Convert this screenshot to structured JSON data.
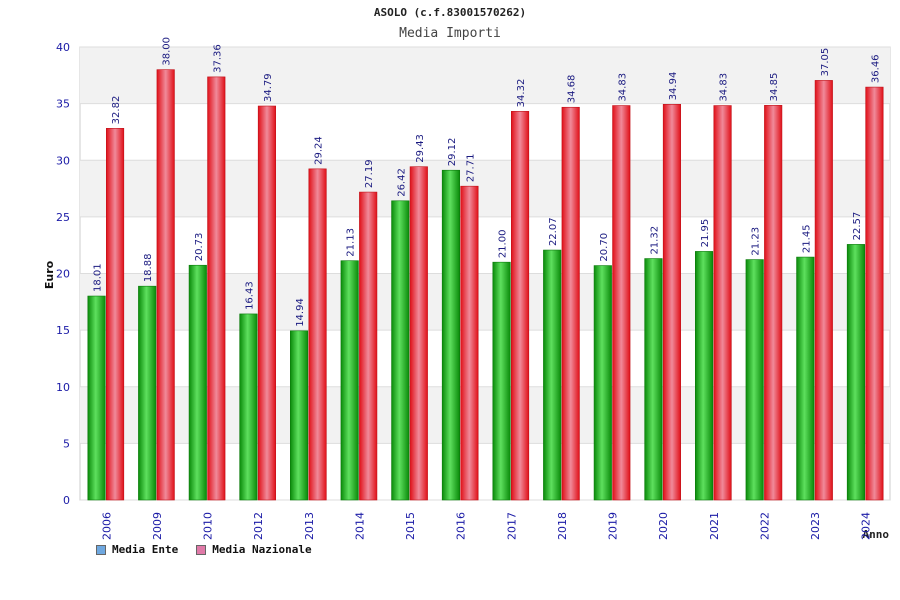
{
  "chart_data": {
    "type": "bar",
    "title": "ASOLO (c.f.83001570262)",
    "subtitle": "Media Importi",
    "xlabel": "Anno",
    "ylabel": "Euro",
    "ylim": [
      0,
      40
    ],
    "yticks": [
      0,
      5,
      10,
      15,
      20,
      25,
      30,
      35,
      40
    ],
    "categories": [
      "2006",
      "2009",
      "2010",
      "2012",
      "2013",
      "2014",
      "2015",
      "2016",
      "2017",
      "2018",
      "2019",
      "2020",
      "2021",
      "2022",
      "2023",
      "2024"
    ],
    "series": [
      {
        "name": "Media Ente",
        "color": "#22b022",
        "legend_color": "#6fa8e0",
        "values": [
          18.01,
          18.88,
          20.73,
          16.43,
          14.94,
          21.13,
          26.42,
          29.12,
          21.0,
          22.07,
          20.7,
          21.32,
          21.95,
          21.23,
          21.45,
          22.57
        ],
        "labels": [
          "18.01",
          "18.88",
          "20.73",
          "16.43",
          "14.94",
          "21.13",
          "26.42",
          "29.12",
          "21.00",
          "22.07",
          "20.70",
          "21.32",
          "21.95",
          "21.23",
          "21.45",
          "22.57"
        ]
      },
      {
        "name": "Media Nazionale",
        "color": "#e8222a",
        "legend_color": "#e07aa8",
        "values": [
          32.82,
          38.0,
          37.36,
          34.79,
          29.24,
          27.19,
          29.43,
          27.71,
          34.32,
          34.68,
          34.83,
          34.94,
          34.83,
          34.85,
          37.05,
          36.46
        ],
        "labels": [
          "32.82",
          "38.00",
          "37.36",
          "34.79",
          "29.24",
          "27.19",
          "29.43",
          "27.71",
          "34.32",
          "34.68",
          "34.83",
          "34.94",
          "34.83",
          "34.85",
          "37.05",
          "36.46"
        ]
      }
    ]
  }
}
